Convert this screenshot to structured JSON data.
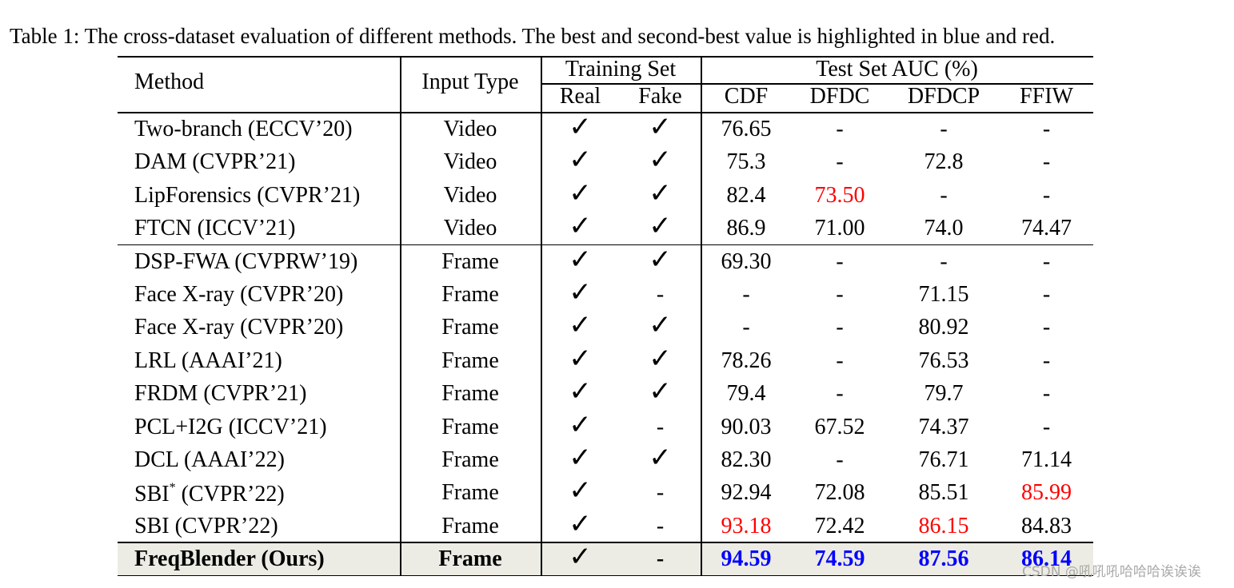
{
  "caption": "Table 1: The cross-dataset evaluation of different methods. The best and second-best value is highlighted in blue and red.",
  "table": {
    "header": {
      "method": "Method",
      "input_type": "Input Type",
      "training_set": "Training Set",
      "test_set": "Test Set AUC (%)",
      "training_cols": [
        "Real",
        "Fake"
      ],
      "test_cols": [
        "CDF",
        "DFDC",
        "DFDCP",
        "FFIW"
      ]
    },
    "row_groups": [
      [
        {
          "cells": [
            "Two-branch (ECCV’20)",
            "Video",
            "✓",
            "✓",
            "76.65",
            "-",
            "-",
            "-"
          ]
        },
        {
          "cells": [
            "DAM (CVPR’21)",
            "Video",
            "✓",
            "✓",
            "75.3",
            "-",
            "72.8",
            "-"
          ]
        },
        {
          "cells": [
            "LipForensics (CVPR’21)",
            "Video",
            "✓",
            "✓",
            "82.4",
            {
              "text": "73.50",
              "color": "#ff0000"
            },
            "-",
            "-"
          ]
        },
        {
          "cells": [
            "FTCN (ICCV’21)",
            "Video",
            "✓",
            "✓",
            "86.9",
            "71.00",
            "74.0",
            "74.47"
          ]
        }
      ],
      [
        {
          "cells": [
            "DSP-FWA (CVPRW’19)",
            "Frame",
            "✓",
            "✓",
            "69.30",
            "-",
            "-",
            "-"
          ]
        },
        {
          "cells": [
            "Face X-ray (CVPR’20)",
            "Frame",
            "✓",
            "-",
            "-",
            "-",
            "71.15",
            "-"
          ]
        },
        {
          "cells": [
            "Face X-ray (CVPR’20)",
            "Frame",
            "✓",
            "✓",
            "-",
            "-",
            "80.92",
            "-"
          ]
        },
        {
          "cells": [
            "LRL (AAAI’21)",
            "Frame",
            "✓",
            "✓",
            "78.26",
            "-",
            "76.53",
            "-"
          ]
        },
        {
          "cells": [
            "FRDM (CVPR’21)",
            "Frame",
            "✓",
            "✓",
            "79.4",
            "-",
            "79.7",
            "-"
          ]
        },
        {
          "cells": [
            "PCL+I2G (ICCV’21)",
            "Frame",
            "✓",
            "-",
            "90.03",
            "67.52",
            "74.37",
            "-"
          ]
        },
        {
          "cells": [
            "DCL (AAAI’22)",
            "Frame",
            "✓",
            "✓",
            "82.30",
            "-",
            "76.71",
            "71.14"
          ]
        },
        {
          "cells": [
            {
              "text": "SBI",
              "sup": "*",
              "after": " (CVPR’22)"
            },
            "Frame",
            "✓",
            "-",
            "92.94",
            "72.08",
            "85.51",
            {
              "text": "85.99",
              "color": "#ff0000"
            }
          ]
        },
        {
          "cells": [
            "SBI (CVPR’22)",
            "Frame",
            "✓",
            "-",
            {
              "text": "93.18",
              "color": "#ff0000"
            },
            "72.42",
            {
              "text": "86.15",
              "color": "#ff0000"
            },
            "84.83"
          ]
        },
        {
          "cells": [
            "FreqBlender (Ours)",
            "Frame",
            "✓",
            "-",
            {
              "text": "94.59",
              "color": "#0000ff"
            },
            {
              "text": "74.59",
              "color": "#0000ff"
            },
            {
              "text": "87.56",
              "color": "#0000ff"
            },
            {
              "text": "86.14",
              "color": "#0000ff"
            }
          ],
          "bold": true,
          "shade": "#ecece4"
        }
      ]
    ]
  },
  "watermark": "CSDN @吼吼吼哈哈哈诶诶诶"
}
